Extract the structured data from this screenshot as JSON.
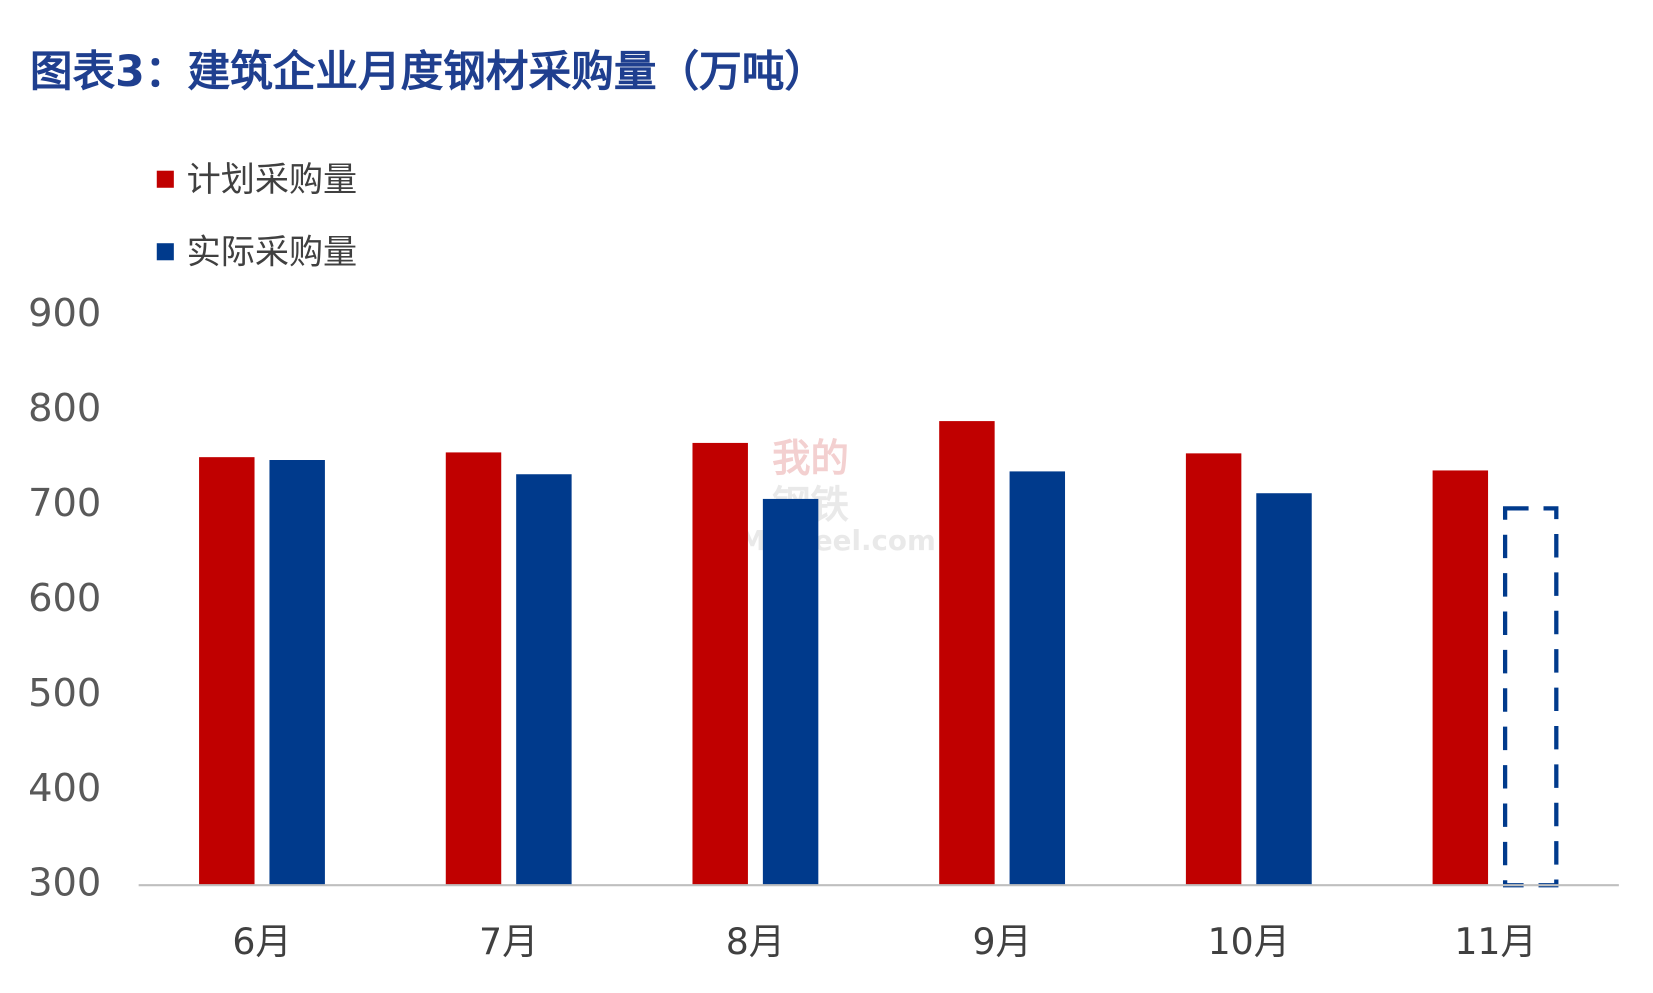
{
  "chart_data": {
    "type": "bar",
    "title": "图表3：建筑企业月度钢材采购量（万吨）",
    "categories": [
      "6月",
      "7月",
      "8月",
      "9月",
      "10月",
      "11月"
    ],
    "series": [
      {
        "name": "计划采购量",
        "color": "#C00000",
        "values": [
          751,
          756,
          766,
          789,
          755,
          737
        ]
      },
      {
        "name": "实际采购量",
        "color": "#003A8C",
        "values": [
          748,
          733,
          707,
          736,
          713,
          697
        ],
        "dashed": [
          false,
          false,
          false,
          false,
          false,
          true
        ]
      }
    ],
    "ylim": [
      300,
      900
    ],
    "yticks": [
      300,
      400,
      500,
      600,
      700,
      800,
      900
    ],
    "grid": false,
    "watermark": [
      "我的",
      "钢铁",
      "Mysteel.com"
    ]
  }
}
